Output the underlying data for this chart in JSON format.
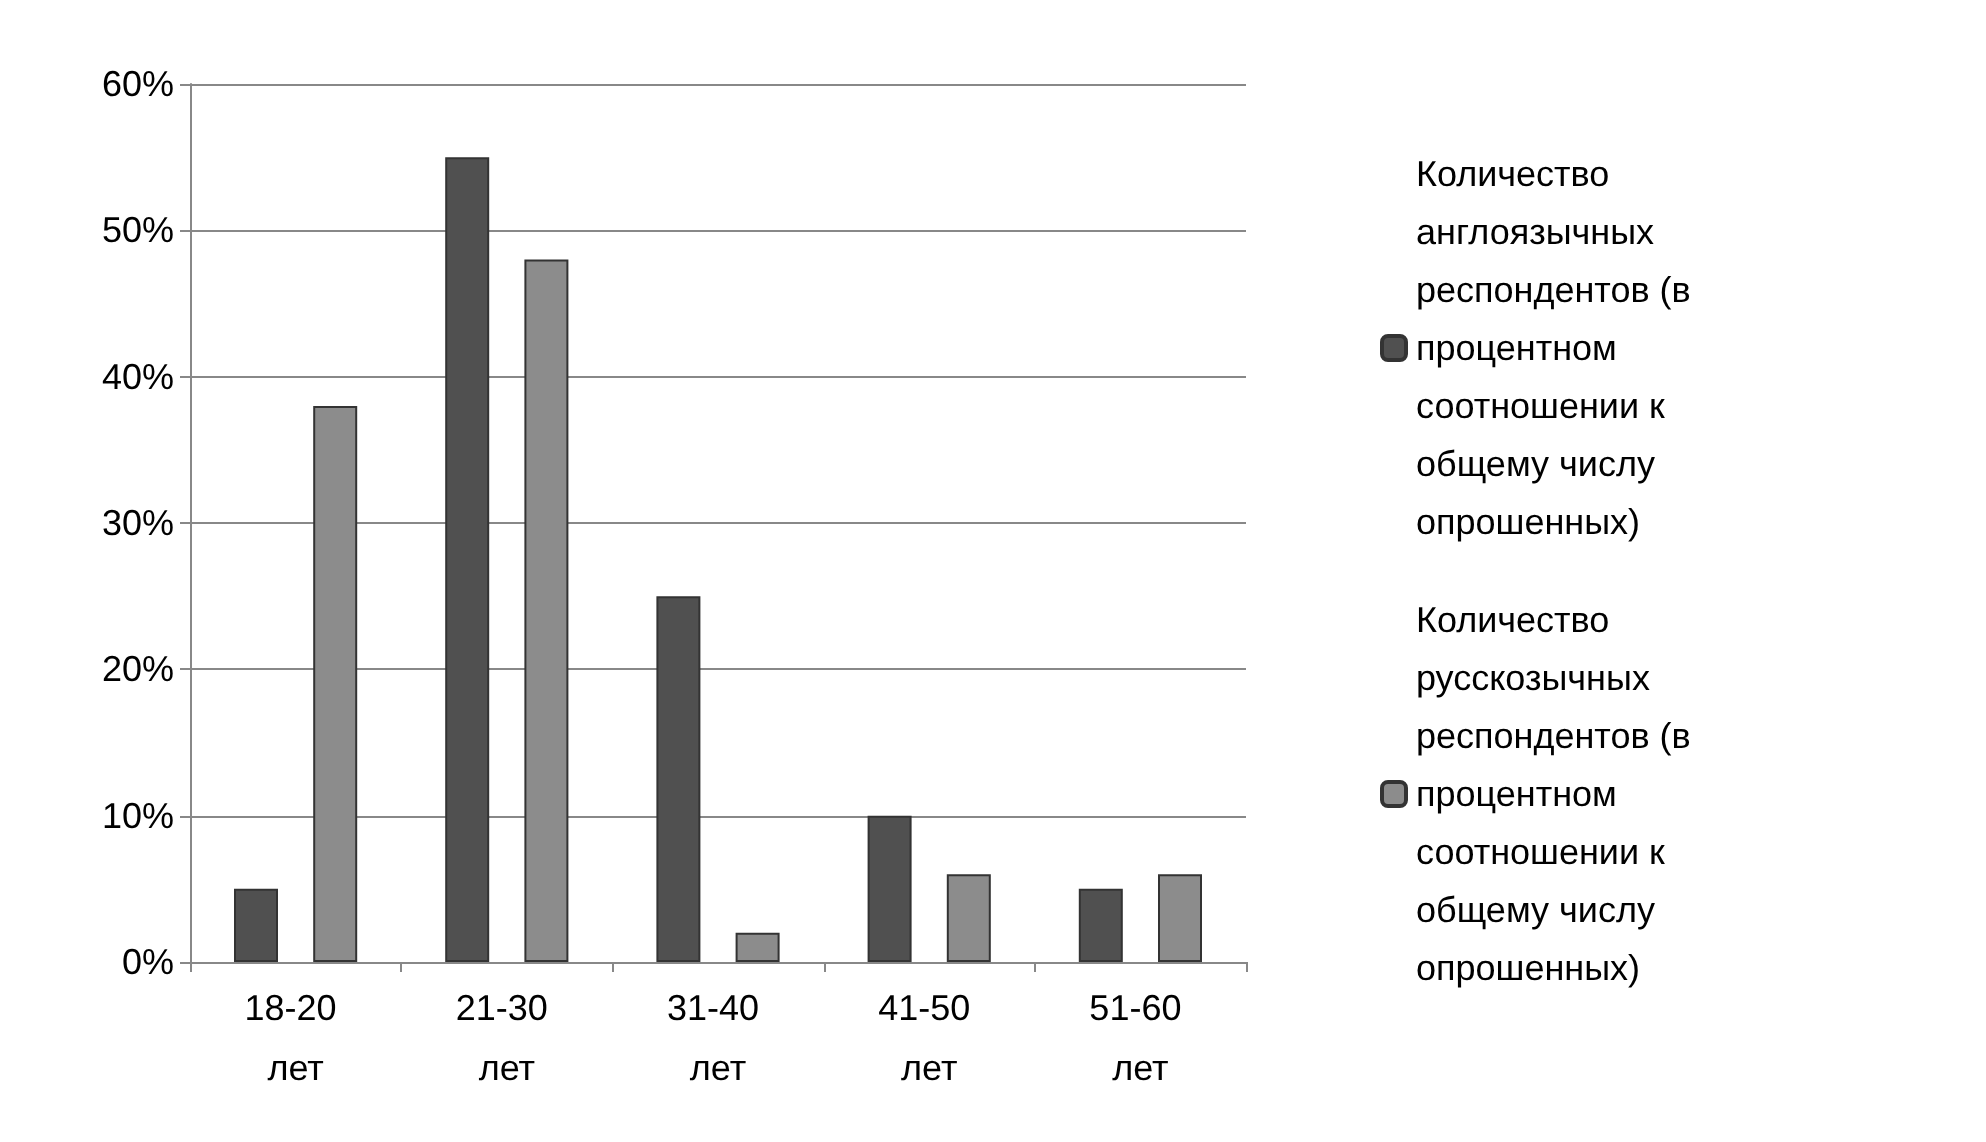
{
  "chart_data": {
    "type": "bar",
    "categories": [
      "18-20 лет",
      "21-30 лет",
      "31-40 лет",
      "41-50 лет",
      "51-60 лет"
    ],
    "series": [
      {
        "name": "Количество англоязычных респондентов (в процентном соотношении к общему числу опрошенных)",
        "color": "#505050",
        "values": [
          5,
          55,
          25,
          10,
          5
        ]
      },
      {
        "name": "Количество русскозычных респондентов (в процентном соотношении к общему числу опрошенных)",
        "color": "#8c8c8c",
        "values": [
          38,
          48,
          2,
          6,
          6
        ]
      }
    ],
    "ylim": [
      0,
      60
    ],
    "yticks": [
      {
        "value": 0,
        "label": "0%"
      },
      {
        "value": 10,
        "label": "10%"
      },
      {
        "value": 20,
        "label": "20%"
      },
      {
        "value": 30,
        "label": "30%"
      },
      {
        "value": 40,
        "label": "40%"
      },
      {
        "value": 50,
        "label": "50%"
      },
      {
        "value": 60,
        "label": "60%"
      }
    ],
    "grid": "y",
    "legend": "right"
  }
}
